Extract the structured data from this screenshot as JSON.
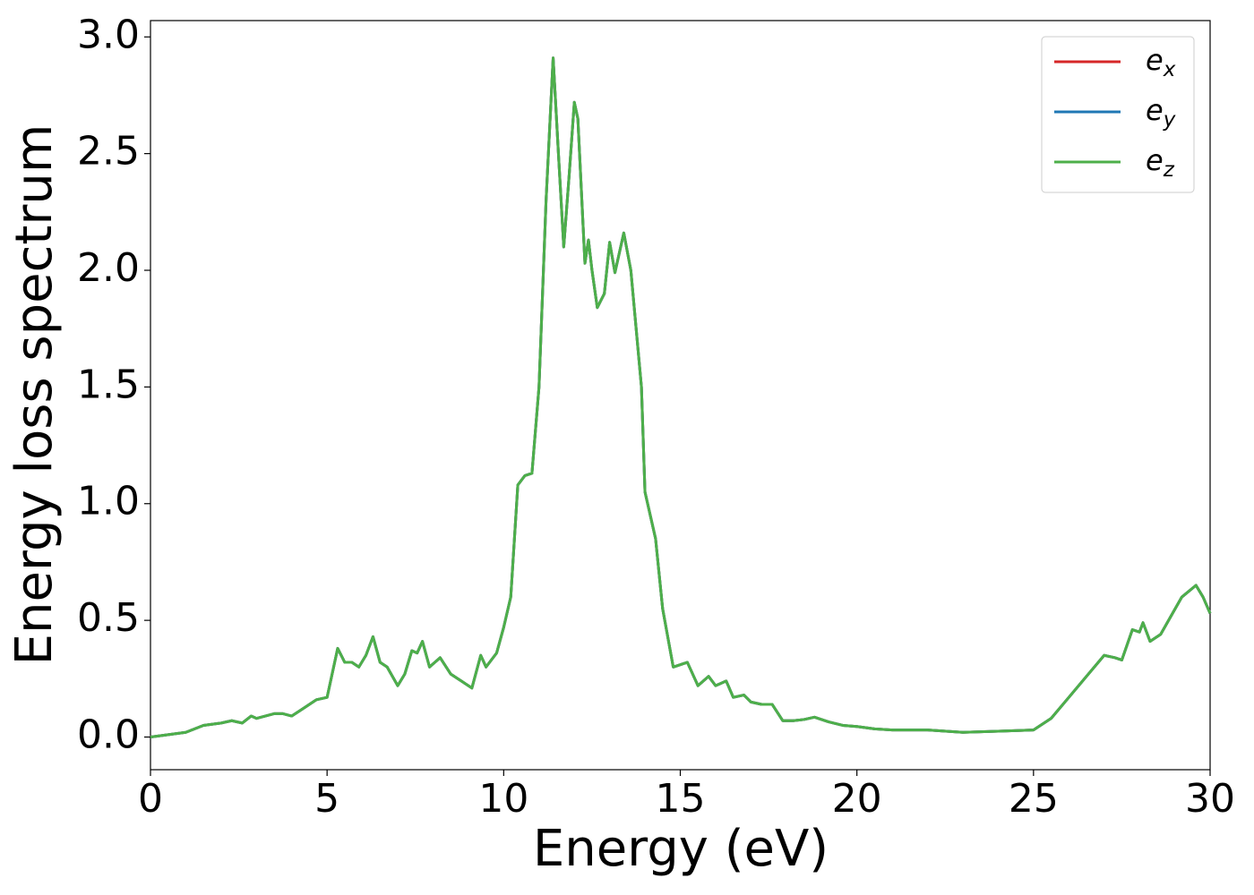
{
  "chart_data": {
    "type": "line",
    "xlabel": "Energy (eV)",
    "ylabel": "Energy loss spectrum",
    "x": [
      0,
      0.5,
      1,
      1.5,
      2,
      2.3,
      2.6,
      2.85,
      3,
      3.5,
      3.75,
      4,
      4.3,
      4.7,
      5,
      5.3,
      5.5,
      5.7,
      5.9,
      6.1,
      6.3,
      6.5,
      6.7,
      7,
      7.2,
      7.4,
      7.55,
      7.7,
      7.9,
      8.2,
      8.5,
      8.8,
      9.1,
      9.35,
      9.5,
      9.8,
      10,
      10.2,
      10.4,
      10.6,
      10.8,
      11,
      11.2,
      11.4,
      11.55,
      11.7,
      11.85,
      12,
      12.1,
      12.3,
      12.4,
      12.5,
      12.65,
      12.85,
      13,
      13.15,
      13.4,
      13.6,
      13.9,
      14,
      14.3,
      14.5,
      14.8,
      15,
      15.2,
      15.5,
      15.8,
      16,
      16.3,
      16.5,
      16.8,
      17,
      17.3,
      17.6,
      17.9,
      18.2,
      18.5,
      18.8,
      19.2,
      19.6,
      20,
      20.5,
      21,
      22,
      23,
      24,
      25,
      25.5,
      26,
      26.5,
      27,
      27.3,
      27.5,
      27.8,
      28,
      28.1,
      28.3,
      28.6,
      28.9,
      29.2,
      29.6,
      29.8,
      30
    ],
    "series": [
      {
        "name": "ex",
        "color": "#d62728",
        "values": [
          0,
          0.01,
          0.02,
          0.05,
          0.06,
          0.07,
          0.06,
          0.09,
          0.08,
          0.1,
          0.1,
          0.09,
          0.12,
          0.16,
          0.17,
          0.38,
          0.32,
          0.32,
          0.3,
          0.35,
          0.43,
          0.32,
          0.3,
          0.22,
          0.27,
          0.37,
          0.36,
          0.41,
          0.3,
          0.34,
          0.27,
          0.24,
          0.21,
          0.35,
          0.3,
          0.36,
          0.47,
          0.6,
          1.08,
          1.12,
          1.13,
          1.5,
          2.3,
          2.91,
          2.5,
          2.1,
          2.4,
          2.72,
          2.65,
          2.03,
          2.13,
          2,
          1.84,
          1.9,
          2.12,
          1.99,
          2.16,
          2,
          1.5,
          1.05,
          0.85,
          0.55,
          0.3,
          0.31,
          0.32,
          0.22,
          0.26,
          0.22,
          0.24,
          0.17,
          0.18,
          0.15,
          0.14,
          0.14,
          0.07,
          0.07,
          0.075,
          0.085,
          0.065,
          0.05,
          0.045,
          0.035,
          0.03,
          0.03,
          0.02,
          0.025,
          0.03,
          0.08,
          0.17,
          0.26,
          0.35,
          0.34,
          0.33,
          0.46,
          0.45,
          0.49,
          0.41,
          0.44,
          0.52,
          0.6,
          0.65,
          0.6,
          0.53
        ]
      },
      {
        "name": "ey",
        "color": "#1f77b4",
        "values": [
          0,
          0.01,
          0.02,
          0.05,
          0.06,
          0.07,
          0.06,
          0.09,
          0.08,
          0.1,
          0.1,
          0.09,
          0.12,
          0.16,
          0.17,
          0.38,
          0.32,
          0.32,
          0.3,
          0.35,
          0.43,
          0.32,
          0.3,
          0.22,
          0.27,
          0.37,
          0.36,
          0.41,
          0.3,
          0.34,
          0.27,
          0.24,
          0.21,
          0.35,
          0.3,
          0.36,
          0.47,
          0.6,
          1.08,
          1.12,
          1.13,
          1.5,
          2.3,
          2.91,
          2.5,
          2.1,
          2.4,
          2.72,
          2.65,
          2.03,
          2.13,
          2,
          1.84,
          1.9,
          2.12,
          1.99,
          2.16,
          2,
          1.5,
          1.05,
          0.85,
          0.55,
          0.3,
          0.31,
          0.32,
          0.22,
          0.26,
          0.22,
          0.24,
          0.17,
          0.18,
          0.15,
          0.14,
          0.14,
          0.07,
          0.07,
          0.075,
          0.085,
          0.065,
          0.05,
          0.045,
          0.035,
          0.03,
          0.03,
          0.02,
          0.025,
          0.03,
          0.08,
          0.17,
          0.26,
          0.35,
          0.34,
          0.33,
          0.46,
          0.45,
          0.49,
          0.41,
          0.44,
          0.52,
          0.6,
          0.65,
          0.6,
          0.53
        ]
      },
      {
        "name": "ez",
        "color": "#4daf4a",
        "values": [
          0,
          0.01,
          0.02,
          0.05,
          0.06,
          0.07,
          0.06,
          0.09,
          0.08,
          0.1,
          0.1,
          0.09,
          0.12,
          0.16,
          0.17,
          0.38,
          0.32,
          0.32,
          0.3,
          0.35,
          0.43,
          0.32,
          0.3,
          0.22,
          0.27,
          0.37,
          0.36,
          0.41,
          0.3,
          0.34,
          0.27,
          0.24,
          0.21,
          0.35,
          0.3,
          0.36,
          0.47,
          0.6,
          1.08,
          1.12,
          1.13,
          1.5,
          2.3,
          2.91,
          2.5,
          2.1,
          2.4,
          2.72,
          2.65,
          2.03,
          2.13,
          2,
          1.84,
          1.9,
          2.12,
          1.99,
          2.16,
          2,
          1.5,
          1.05,
          0.85,
          0.55,
          0.3,
          0.31,
          0.32,
          0.22,
          0.26,
          0.22,
          0.24,
          0.17,
          0.18,
          0.15,
          0.14,
          0.14,
          0.07,
          0.07,
          0.075,
          0.085,
          0.065,
          0.05,
          0.045,
          0.035,
          0.03,
          0.03,
          0.02,
          0.025,
          0.03,
          0.08,
          0.17,
          0.26,
          0.35,
          0.34,
          0.33,
          0.46,
          0.45,
          0.49,
          0.41,
          0.44,
          0.52,
          0.6,
          0.65,
          0.6,
          0.53
        ]
      }
    ],
    "xlim": [
      0,
      30
    ],
    "xticks": [
      0,
      5,
      10,
      15,
      20,
      25,
      30
    ],
    "ylim": [
      -0.14,
      3.07
    ],
    "yticks": [
      {
        "value": 0,
        "label": "0.0"
      },
      0.5,
      {
        "value": 1,
        "label": "1.0"
      },
      1.5,
      {
        "value": 2,
        "label": "2.0"
      },
      2.5,
      {
        "value": 3,
        "label": "3.0"
      }
    ],
    "grid": false,
    "legend": "upper right"
  }
}
